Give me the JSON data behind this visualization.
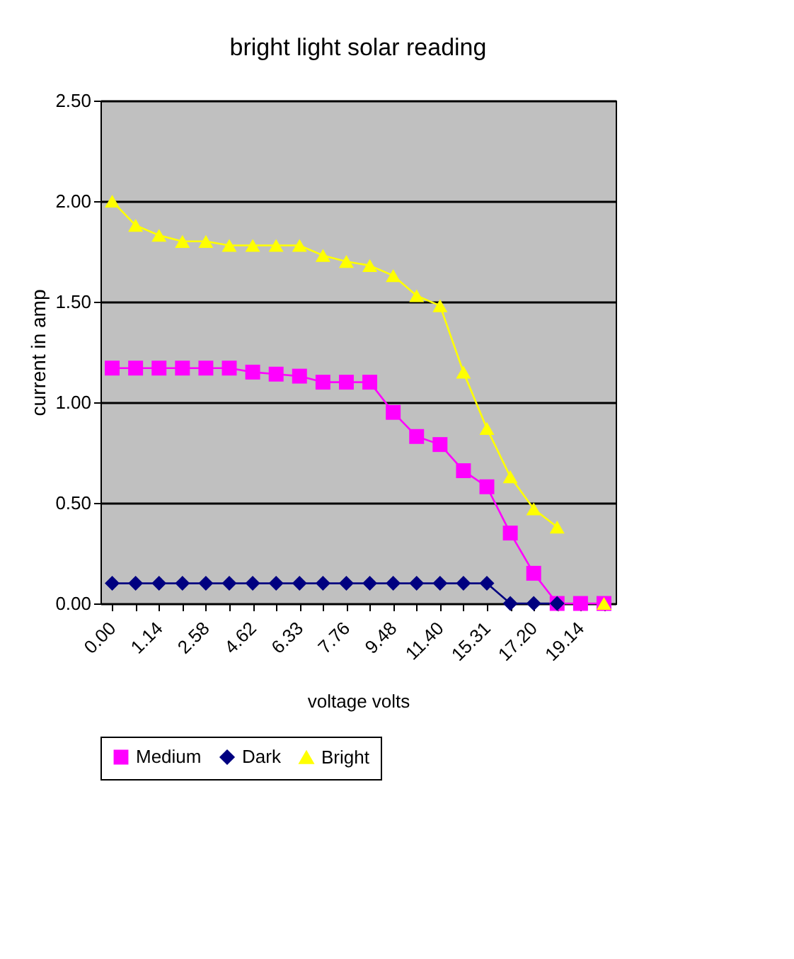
{
  "chart_data": {
    "type": "line",
    "title": "bright light solar reading",
    "xlabel": "voltage volts",
    "ylabel": "current in amp",
    "categories": [
      "0.00",
      null,
      "1.14",
      null,
      "2.58",
      null,
      "4.62",
      null,
      "6.33",
      null,
      "7.76",
      null,
      "9.48",
      null,
      "11.40",
      null,
      "15.31",
      null,
      "17.20",
      null,
      "19.14",
      null
    ],
    "series": [
      {
        "name": "Medium",
        "color": "#ff00ff",
        "marker": "square",
        "values": [
          1.17,
          1.17,
          1.17,
          1.17,
          1.17,
          1.17,
          1.15,
          1.14,
          1.13,
          1.1,
          1.1,
          1.1,
          0.95,
          0.83,
          0.79,
          0.66,
          0.58,
          0.35,
          0.15,
          0.0,
          0.0,
          0.0
        ]
      },
      {
        "name": "Dark",
        "color": "#000080",
        "marker": "diamond",
        "values": [
          0.1,
          0.1,
          0.1,
          0.1,
          0.1,
          0.1,
          0.1,
          0.1,
          0.1,
          0.1,
          0.1,
          0.1,
          0.1,
          0.1,
          0.1,
          0.1,
          0.1,
          0.0,
          0.0,
          0.0,
          null,
          null
        ]
      },
      {
        "name": "Bright",
        "color": "#ffff00",
        "marker": "triangle",
        "values": [
          2.0,
          1.88,
          1.83,
          1.8,
          1.8,
          1.78,
          1.78,
          1.78,
          1.78,
          1.73,
          1.7,
          1.68,
          1.63,
          1.53,
          1.48,
          1.15,
          0.87,
          0.63,
          0.47,
          0.38,
          null,
          0.0
        ]
      }
    ],
    "ylim": [
      0,
      2.5
    ],
    "yticks": [
      {
        "value": 0,
        "label": "0.00"
      },
      {
        "value": 0.5,
        "label": "0.50"
      },
      {
        "value": 1,
        "label": "1.00"
      },
      {
        "value": 1.5,
        "label": "1.50"
      },
      {
        "value": 2,
        "label": "2.00"
      },
      {
        "value": 2.5,
        "label": "2.50"
      }
    ],
    "grid": "y",
    "legend": "bottom"
  }
}
